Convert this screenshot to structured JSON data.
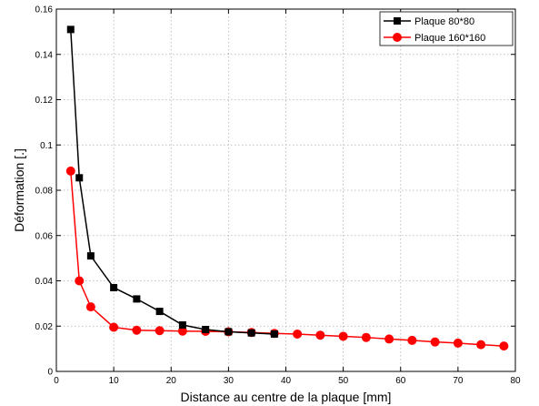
{
  "chart_data": {
    "type": "line",
    "title": "",
    "xlabel": "Distance au centre de la plaque [mm]",
    "ylabel": "Déformation [.]",
    "xlim": [
      0,
      80
    ],
    "ylim": [
      0,
      0.16
    ],
    "xticks": [
      "0",
      "10",
      "20",
      "30",
      "40",
      "50",
      "60",
      "70",
      "80"
    ],
    "yticks": [
      "0",
      "0.02",
      "0.04",
      "0.06",
      "0.08",
      "0.1",
      "0.12",
      "0.14",
      "0.16"
    ],
    "grid": true,
    "legend_position": "top-right",
    "series": [
      {
        "name": "Plaque 80*80",
        "color": "#000000",
        "marker": "square",
        "x": [
          2.5,
          4,
          6,
          10,
          14,
          18,
          22,
          26,
          30,
          34,
          38
        ],
        "y": [
          0.151,
          0.0855,
          0.051,
          0.037,
          0.032,
          0.0265,
          0.0205,
          0.0185,
          0.0175,
          0.017,
          0.0165
        ]
      },
      {
        "name": "Plaque 160*160",
        "color": "#ff0000",
        "marker": "circle",
        "x": [
          2.5,
          4,
          6,
          10,
          14,
          18,
          22,
          26,
          30,
          34,
          38,
          42,
          46,
          50,
          54,
          58,
          62,
          66,
          70,
          74,
          78
        ],
        "y": [
          0.0885,
          0.04,
          0.0285,
          0.0195,
          0.0182,
          0.018,
          0.0178,
          0.0177,
          0.0175,
          0.0172,
          0.0168,
          0.0165,
          0.016,
          0.0155,
          0.015,
          0.0143,
          0.0137,
          0.013,
          0.0125,
          0.0118,
          0.0112
        ]
      }
    ]
  }
}
